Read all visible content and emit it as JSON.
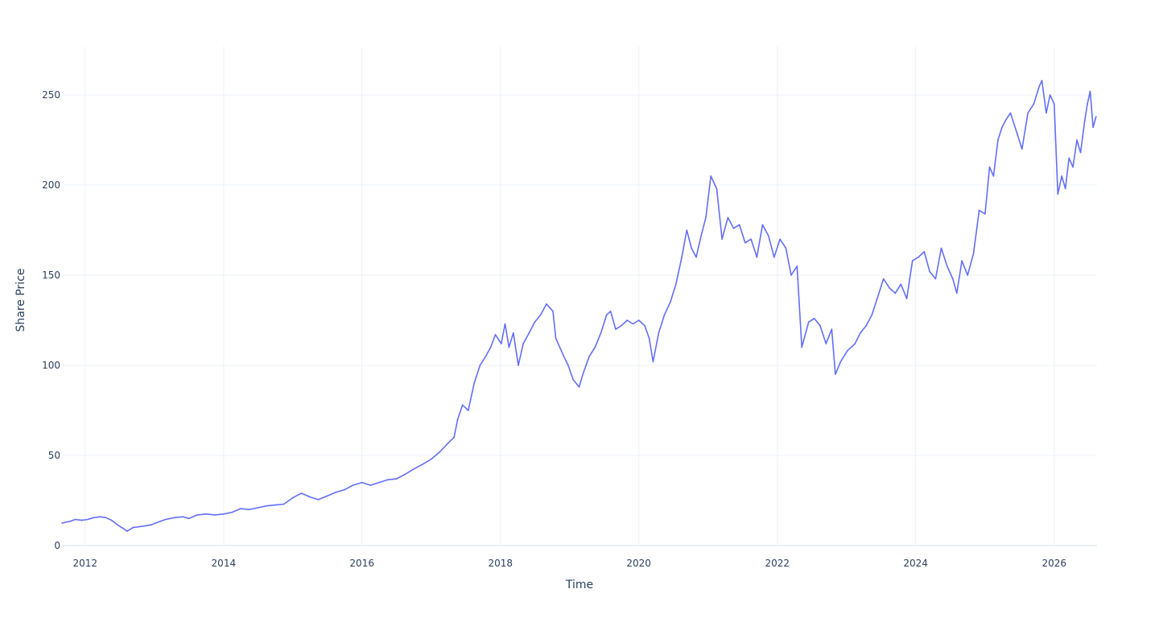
{
  "chart_data": {
    "type": "line",
    "xlabel": "Time",
    "ylabel": "Share Price",
    "xlim": [
      "2011-09-01",
      "2026-08-15"
    ],
    "ylim": [
      0,
      275
    ],
    "x_ticks": [
      "2012-01-01",
      "2014-01-01",
      "2016-01-01",
      "2018-01-01",
      "2020-01-01",
      "2022-01-01",
      "2024-01-01",
      "2026-01-01"
    ],
    "x_tick_labels": [
      "2012",
      "2014",
      "2016",
      "2018",
      "2020",
      "2022",
      "2024",
      "2026"
    ],
    "y_ticks": [
      0,
      50,
      100,
      150,
      200,
      250
    ],
    "y_tick_labels": [
      "0",
      "50",
      "100",
      "150",
      "200",
      "250"
    ],
    "grid": true,
    "series": [
      {
        "color": "#636efa",
        "x": [
          "2011-09-01",
          "2011-10-15",
          "2011-11-10",
          "2011-12-15",
          "2012-01-15",
          "2012-02-15",
          "2012-03-20",
          "2012-04-20",
          "2012-05-20",
          "2012-06-20",
          "2012-07-20",
          "2012-08-10",
          "2012-09-10",
          "2012-10-15",
          "2012-11-15",
          "2012-12-15",
          "2013-01-20",
          "2013-03-01",
          "2013-04-15",
          "2013-06-01",
          "2013-07-01",
          "2013-08-15",
          "2013-10-01",
          "2013-11-15",
          "2014-01-01",
          "2014-02-15",
          "2014-04-01",
          "2014-05-15",
          "2014-07-01",
          "2014-08-15",
          "2014-10-01",
          "2014-11-15",
          "2015-01-01",
          "2015-02-15",
          "2015-04-01",
          "2015-05-15",
          "2015-07-01",
          "2015-08-15",
          "2015-10-01",
          "2015-11-15",
          "2016-01-01",
          "2016-02-15",
          "2016-04-01",
          "2016-05-15",
          "2016-07-01",
          "2016-08-15",
          "2016-10-01",
          "2016-11-15",
          "2017-01-01",
          "2017-02-15",
          "2017-04-01",
          "2017-05-01",
          "2017-05-20",
          "2017-06-15",
          "2017-07-15",
          "2017-08-15",
          "2017-09-15",
          "2017-10-15",
          "2017-11-10",
          "2017-12-05",
          "2018-01-05",
          "2018-01-25",
          "2018-02-15",
          "2018-03-10",
          "2018-04-05",
          "2018-05-01",
          "2018-06-01",
          "2018-07-01",
          "2018-08-01",
          "2018-09-01",
          "2018-10-05",
          "2018-10-20",
          "2018-11-10",
          "2018-12-01",
          "2018-12-24",
          "2019-01-20",
          "2019-02-20",
          "2019-03-15",
          "2019-04-15",
          "2019-05-15",
          "2019-06-15",
          "2019-07-15",
          "2019-08-05",
          "2019-09-01",
          "2019-10-01",
          "2019-11-01",
          "2019-12-01",
          "2020-01-01",
          "2020-02-01",
          "2020-02-25",
          "2020-03-16",
          "2020-04-15",
          "2020-05-15",
          "2020-06-15",
          "2020-07-15",
          "2020-08-15",
          "2020-09-10",
          "2020-10-05",
          "2020-10-30",
          "2020-11-25",
          "2020-12-20",
          "2021-01-15",
          "2021-02-15",
          "2021-03-15",
          "2021-04-15",
          "2021-05-15",
          "2021-06-15",
          "2021-07-15",
          "2021-08-15",
          "2021-09-15",
          "2021-10-15",
          "2021-11-15",
          "2021-12-15",
          "2022-01-15",
          "2022-02-15",
          "2022-03-15",
          "2022-04-15",
          "2022-05-10",
          "2022-06-15",
          "2022-07-15",
          "2022-08-15",
          "2022-09-15",
          "2022-10-15",
          "2022-11-03",
          "2022-12-01",
          "2023-01-05",
          "2023-02-15",
          "2023-03-15",
          "2023-04-15",
          "2023-05-15",
          "2023-06-15",
          "2023-07-15",
          "2023-08-15",
          "2023-09-15",
          "2023-10-15",
          "2023-11-15",
          "2023-12-15",
          "2024-01-15",
          "2024-02-15",
          "2024-03-15",
          "2024-04-15",
          "2024-05-15",
          "2024-06-15",
          "2024-07-15",
          "2024-08-05",
          "2024-09-01",
          "2024-10-01",
          "2024-11-01",
          "2024-12-01",
          "2025-01-01",
          "2025-01-25",
          "2025-02-15",
          "2025-03-10",
          "2025-04-01",
          "2025-04-20",
          "2025-05-15",
          "2025-06-15",
          "2025-07-15",
          "2025-08-15",
          "2025-09-15",
          "2025-10-15",
          "2025-10-28",
          "2025-11-20",
          "2025-12-10",
          "2026-01-01",
          "2026-01-20",
          "2026-02-10",
          "2026-03-01",
          "2026-03-20",
          "2026-04-10",
          "2026-05-01",
          "2026-05-20",
          "2026-06-10",
          "2026-06-25",
          "2026-07-10",
          "2026-07-25",
          "2026-08-10"
        ],
        "y": [
          12.5,
          13.5,
          14.5,
          14.0,
          14.5,
          15.5,
          16.0,
          15.5,
          14.0,
          11.5,
          9.5,
          8.0,
          10.0,
          10.5,
          11.0,
          11.5,
          13.0,
          14.5,
          15.5,
          16.0,
          15.0,
          17.0,
          17.5,
          17.0,
          17.5,
          18.5,
          20.5,
          20.0,
          21.0,
          22.0,
          22.5,
          23.0,
          26.5,
          29.0,
          27.0,
          25.5,
          27.5,
          29.5,
          31.0,
          33.5,
          35.0,
          33.5,
          35.0,
          36.5,
          37.0,
          39.5,
          42.5,
          45.0,
          48.0,
          52.0,
          57.0,
          60.0,
          70.0,
          78.0,
          75.0,
          90.0,
          100.0,
          105.0,
          110.0,
          117.0,
          112.0,
          123.0,
          110.0,
          118.0,
          100.0,
          112.0,
          118.0,
          124.0,
          128.0,
          134.0,
          130.0,
          115.0,
          110.0,
          105.0,
          100.0,
          92.0,
          88.0,
          96.0,
          105.0,
          110.0,
          118.0,
          128.0,
          130.0,
          120.0,
          122.0,
          125.0,
          123.0,
          125.0,
          122.0,
          115.0,
          102.0,
          118.0,
          128.0,
          135.0,
          145.0,
          160.0,
          175.0,
          165.0,
          160.0,
          172.0,
          182.0,
          205.0,
          198.0,
          170.0,
          182.0,
          176.0,
          178.0,
          168.0,
          170.0,
          160.0,
          178.0,
          172.0,
          160.0,
          170.0,
          165.0,
          150.0,
          155.0,
          110.0,
          124.0,
          126.0,
          122.0,
          112.0,
          120.0,
          95.0,
          102.0,
          108.0,
          112.0,
          118.0,
          122.0,
          128.0,
          138.0,
          148.0,
          143.0,
          140.0,
          145.0,
          137.0,
          158.0,
          160.0,
          163.0,
          152.0,
          148.0,
          165.0,
          155.0,
          148.0,
          140.0,
          158.0,
          150.0,
          162.0,
          186.0,
          184.0,
          210.0,
          205.0,
          225.0,
          232.0,
          236.0,
          240.0,
          230.0,
          220.0,
          240.0,
          245.0,
          255.0,
          258.0,
          240.0,
          250.0,
          245.0,
          195.0,
          205.0,
          198.0,
          215.0,
          210.0,
          225.0,
          218.0,
          235.0,
          245.0,
          252.0,
          232.0,
          238.0
        ]
      }
    ]
  }
}
